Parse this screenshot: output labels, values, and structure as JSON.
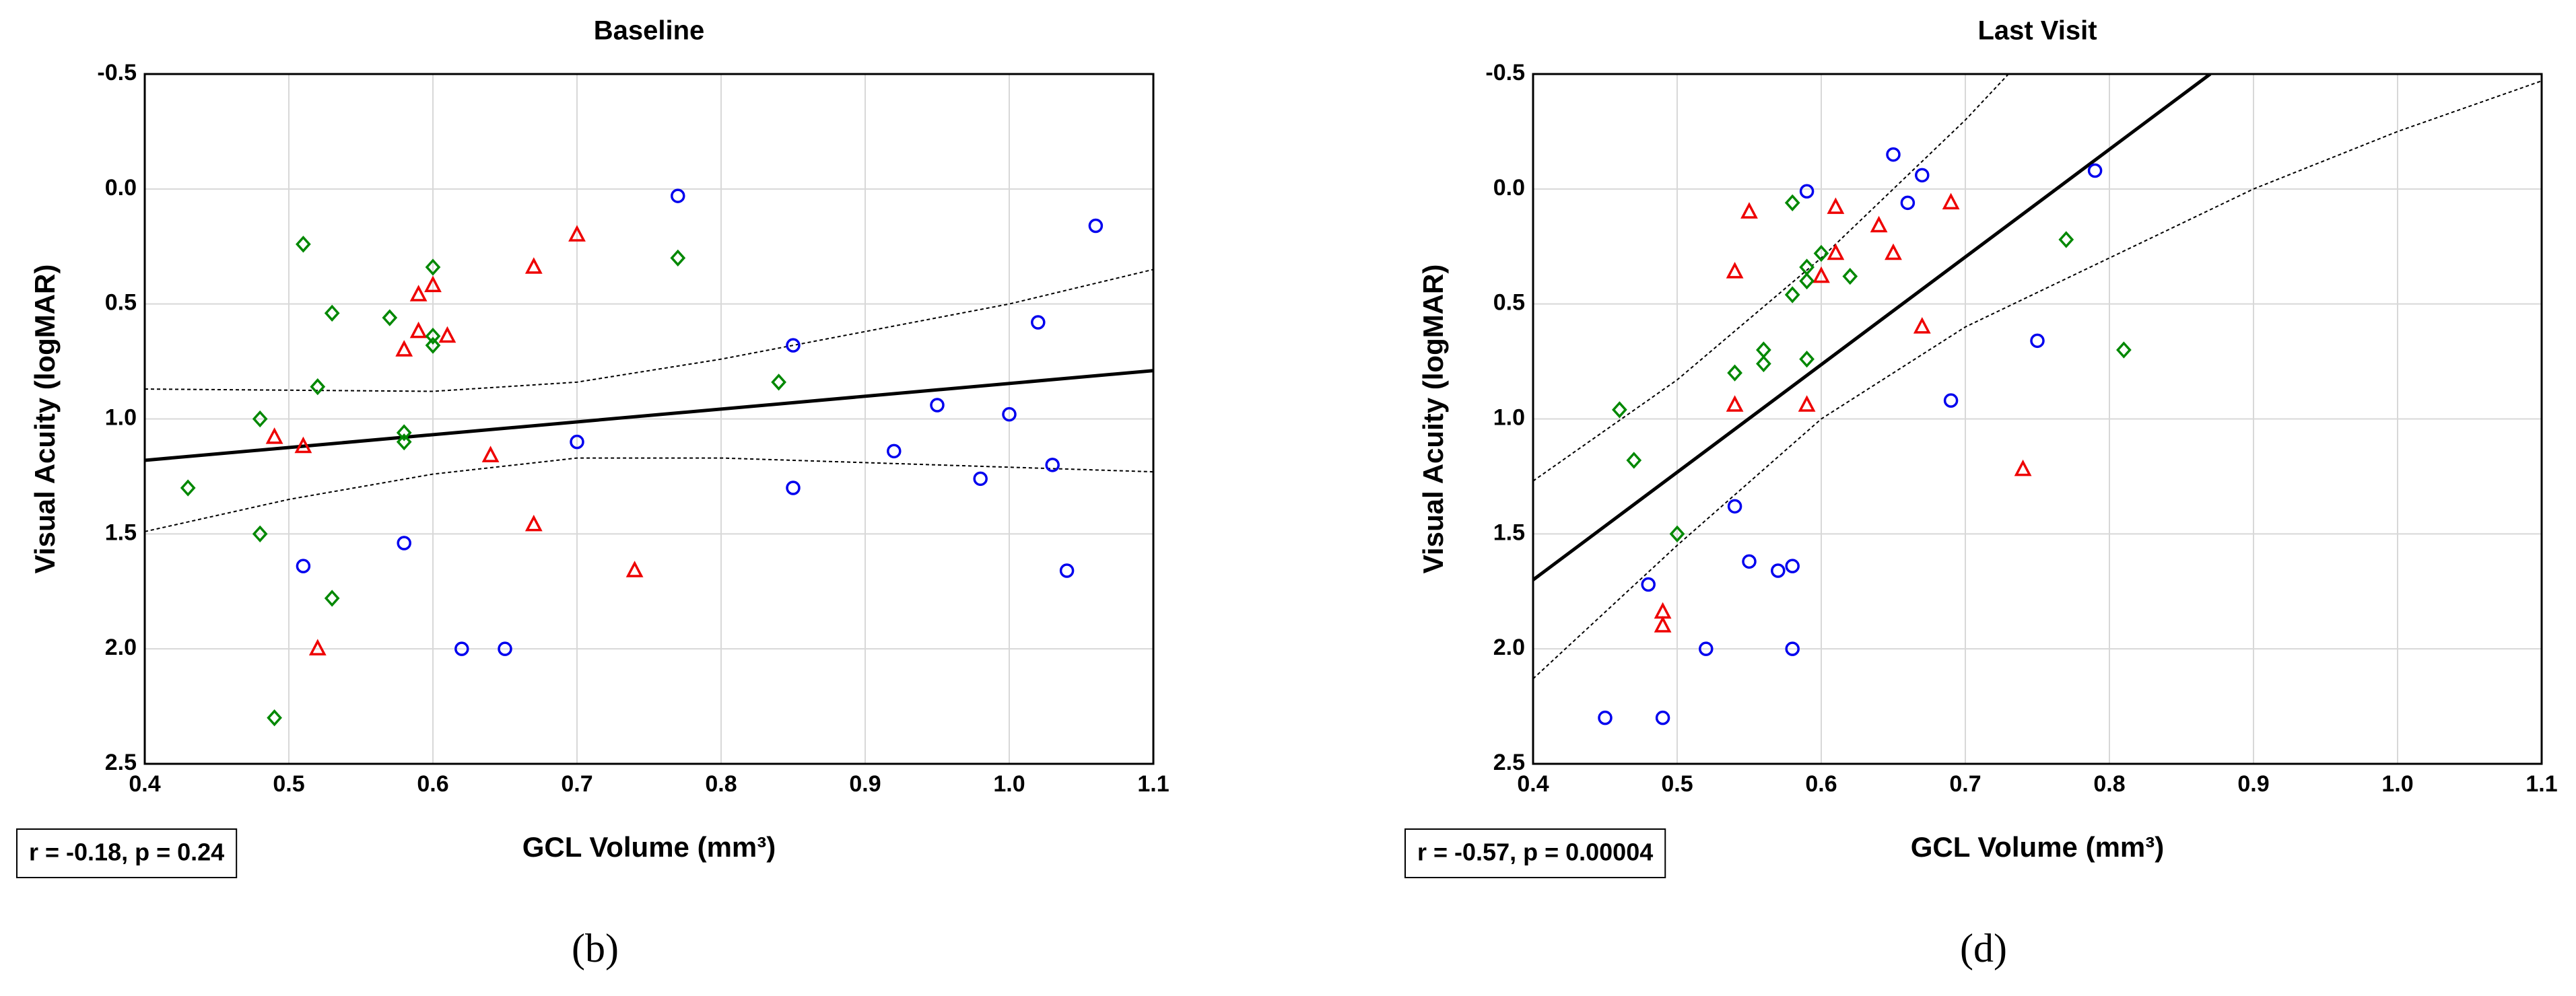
{
  "chart_data": [
    {
      "type": "scatter",
      "title": "Baseline",
      "xlabel": "GCL Volume (mm³)",
      "ylabel": "Visual Acuity (logMAR)",
      "annotation": "r = -0.18, p = 0.24",
      "caption": "(b)",
      "xlim": [
        0.4,
        1.1
      ],
      "xticks": [
        0.4,
        0.5,
        0.6,
        0.7,
        0.8,
        0.9,
        {
          "value": 1.0,
          "label": "1.0"
        },
        1.1
      ],
      "ylim": [
        -0.5,
        2.5
      ],
      "yticks": [
        -0.5,
        {
          "value": 0,
          "label": "0.0"
        },
        0.5,
        {
          "value": 1,
          "label": "1.0"
        },
        1.5,
        {
          "value": 2,
          "label": "2.0"
        },
        2.5
      ],
      "y_inverted": true,
      "grid": true,
      "series": [
        {
          "color": "#0000ee",
          "marker": "circle",
          "x": [
            0.77,
            1.06,
            0.85,
            1.02,
            0.95,
            1.0,
            0.92,
            1.03,
            0.98,
            0.85,
            0.7,
            0.58,
            0.51,
            1.04,
            0.62,
            0.65
          ],
          "y": [
            0.03,
            0.16,
            0.68,
            0.58,
            0.94,
            0.98,
            1.14,
            1.2,
            1.26,
            1.3,
            1.1,
            1.54,
            1.64,
            1.66,
            2.0,
            2.0
          ]
        },
        {
          "color": "#ee0000",
          "marker": "triangle",
          "x": [
            0.7,
            0.67,
            0.6,
            0.59,
            0.58,
            0.59,
            0.61,
            0.49,
            0.51,
            0.64,
            0.67,
            0.74,
            0.52
          ],
          "y": [
            0.2,
            0.34,
            0.42,
            0.46,
            0.7,
            0.62,
            0.64,
            1.08,
            1.12,
            1.16,
            1.46,
            1.66,
            2.0
          ]
        },
        {
          "color": "#008800",
          "marker": "diamond",
          "x": [
            0.51,
            0.6,
            0.77,
            0.53,
            0.57,
            0.6,
            0.6,
            0.52,
            0.84,
            0.48,
            0.58,
            0.58,
            0.43,
            0.48,
            0.53,
            0.49
          ],
          "y": [
            0.24,
            0.34,
            0.3,
            0.54,
            0.56,
            0.64,
            0.68,
            0.86,
            0.84,
            1.0,
            1.06,
            1.1,
            1.3,
            1.5,
            1.78,
            2.3
          ]
        }
      ],
      "fit": {
        "x": [
          0.4,
          1.1
        ],
        "y": [
          1.18,
          0.79
        ]
      },
      "confidence_band": [
        {
          "x": [
            0.4,
            0.6,
            0.7,
            0.8,
            0.9,
            1.0,
            1.1
          ],
          "y": [
            0.87,
            0.88,
            0.84,
            0.74,
            0.62,
            0.5,
            0.35
          ]
        },
        {
          "x": [
            0.4,
            0.5,
            0.6,
            0.7,
            0.8,
            0.9,
            1.0,
            1.1
          ],
          "y": [
            1.49,
            1.35,
            1.24,
            1.17,
            1.17,
            1.19,
            1.21,
            1.23
          ]
        }
      ]
    },
    {
      "type": "scatter",
      "title": "Last Visit",
      "xlabel": "GCL Volume (mm³)",
      "ylabel": "Visual Acuity (logMAR)",
      "annotation": "r = -0.57, p = 0.00004",
      "caption": "(d)",
      "xlim": [
        0.4,
        1.1
      ],
      "xticks": [
        0.4,
        0.5,
        0.6,
        0.7,
        0.8,
        0.9,
        {
          "value": 1.0,
          "label": "1.0"
        },
        1.1
      ],
      "ylim": [
        -0.5,
        2.5
      ],
      "yticks": [
        -0.5,
        {
          "value": 0,
          "label": "0.0"
        },
        0.5,
        {
          "value": 1,
          "label": "1.0"
        },
        1.5,
        {
          "value": 2,
          "label": "2.0"
        },
        2.5
      ],
      "y_inverted": true,
      "grid": true,
      "series": [
        {
          "color": "#0000ee",
          "marker": "circle",
          "x": [
            0.59,
            0.65,
            0.67,
            0.66,
            0.79,
            0.75,
            0.69,
            0.54,
            0.55,
            0.57,
            0.58,
            0.48,
            0.52,
            0.58,
            0.45,
            0.49
          ],
          "y": [
            0.01,
            -0.15,
            -0.06,
            0.06,
            -0.08,
            0.66,
            0.92,
            1.38,
            1.62,
            1.66,
            1.64,
            1.72,
            2.0,
            2.0,
            2.3,
            2.3
          ]
        },
        {
          "color": "#ee0000",
          "marker": "triangle",
          "x": [
            0.55,
            0.61,
            0.69,
            0.64,
            0.54,
            0.61,
            0.65,
            0.6,
            0.67,
            0.54,
            0.59,
            0.74,
            0.49,
            0.49
          ],
          "y": [
            0.1,
            0.08,
            0.06,
            0.16,
            0.36,
            0.28,
            0.28,
            0.38,
            0.6,
            0.94,
            0.94,
            1.22,
            1.84,
            1.9
          ]
        },
        {
          "color": "#008800",
          "marker": "diamond",
          "x": [
            0.58,
            0.6,
            0.59,
            0.59,
            0.62,
            0.58,
            0.77,
            0.81,
            0.56,
            0.56,
            0.59,
            0.54,
            0.46,
            0.47,
            0.5
          ],
          "y": [
            0.06,
            0.28,
            0.34,
            0.4,
            0.38,
            0.46,
            0.22,
            0.7,
            0.7,
            0.76,
            0.74,
            0.8,
            0.96,
            1.18,
            1.5
          ]
        }
      ],
      "fit": {
        "x": [
          0.4,
          0.87
        ],
        "y": [
          1.7,
          -0.5
        ]
      },
      "confidence_band": [
        {
          "x": [
            0.4,
            0.5,
            0.6,
            0.7,
            0.73
          ],
          "y": [
            1.27,
            0.83,
            0.3,
            -0.3,
            -0.5
          ]
        },
        {
          "x": [
            0.4,
            0.5,
            0.6,
            0.7,
            0.8,
            0.9,
            1.0,
            1.1
          ],
          "y": [
            2.13,
            1.55,
            1.0,
            0.6,
            0.3,
            0.0,
            -0.25,
            -0.47
          ]
        }
      ]
    }
  ]
}
